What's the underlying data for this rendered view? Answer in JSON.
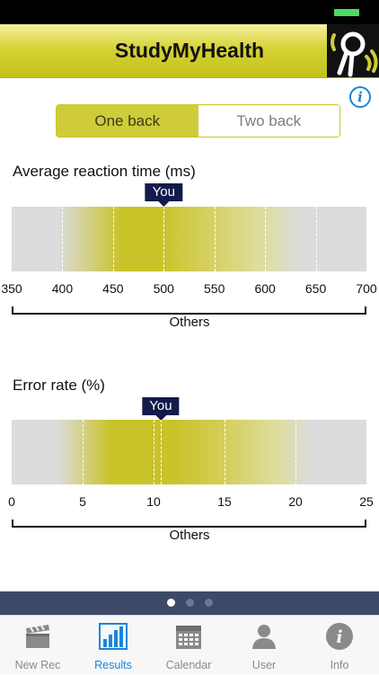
{
  "app": {
    "title": "StudyMyHealth"
  },
  "segmented": {
    "options": [
      "One back",
      "Two back"
    ],
    "selected": 0
  },
  "sections": [
    {
      "title": "Average reaction time (ms)",
      "marker_label": "You",
      "you_value": 500,
      "axis": {
        "min": 350,
        "max": 700,
        "ticks": [
          "350",
          "400",
          "450",
          "500",
          "550",
          "600",
          "650",
          "700"
        ]
      },
      "others_label": "Others"
    },
    {
      "title": "Error rate (%)",
      "marker_label": "You",
      "you_value": 10.5,
      "axis": {
        "min": 0,
        "max": 25,
        "ticks": [
          "0",
          "5",
          "10",
          "15",
          "20",
          "25"
        ]
      },
      "others_label": "Others"
    }
  ],
  "pager": {
    "pages": 3,
    "current": 0
  },
  "tabs": [
    {
      "label": "New Rec",
      "icon": "clapperboard-icon"
    },
    {
      "label": "Results",
      "icon": "bar-chart-icon"
    },
    {
      "label": "Calendar",
      "icon": "calendar-icon"
    },
    {
      "label": "User",
      "icon": "user-icon"
    },
    {
      "label": "Info",
      "icon": "info-icon"
    }
  ],
  "selected_tab": 1,
  "colors": {
    "accent": "#cfcc3a",
    "tab_active": "#1a86d9",
    "marker": "#131a4c",
    "pager_bg": "#3d4966"
  }
}
